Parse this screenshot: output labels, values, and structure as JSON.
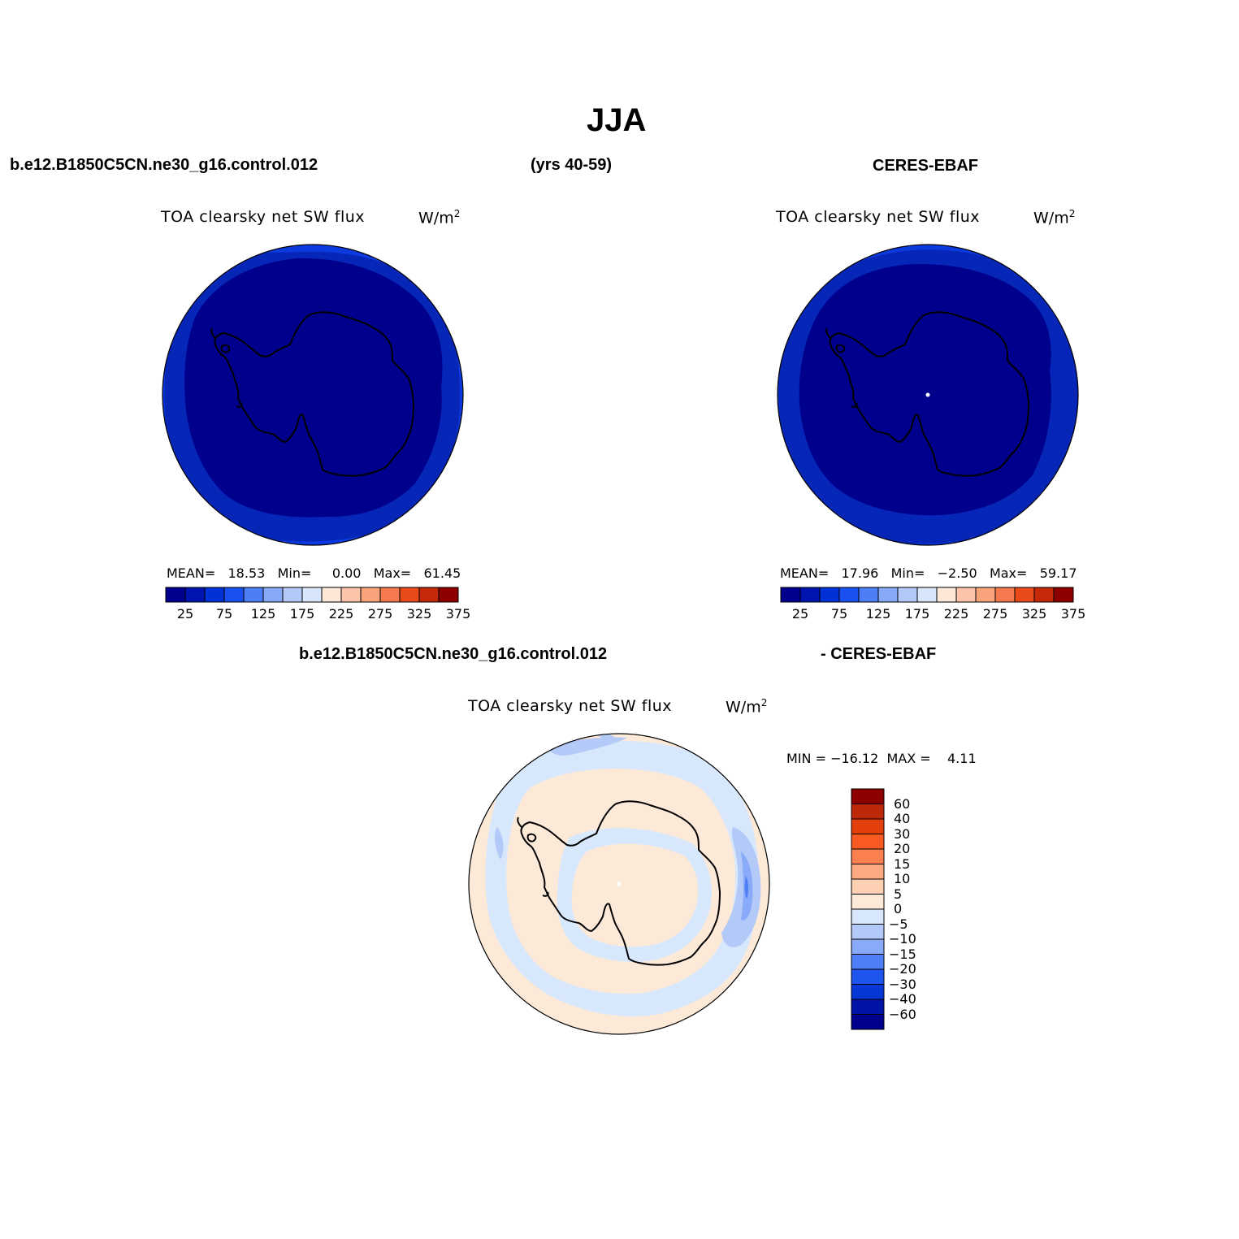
{
  "figure": {
    "title": "JJA",
    "case_label": "b.e12.B1850C5CN.ne30_g16.control.012",
    "years_label": "(yrs 40-59)",
    "obs_label": "CERES-EBAF",
    "diff_case_label": "b.e12.B1850C5CN.ne30_g16.control.012",
    "diff_obs_label": "- CERES-EBAF"
  },
  "panels": {
    "model": {
      "variable": "TOA clearsky net SW flux",
      "units_base": "W/m",
      "units_exp": "2",
      "mean_label": "MEAN=",
      "mean": "18.53",
      "min_label": "Min=",
      "min": "0.00",
      "max_label": "Max=",
      "max": "61.45"
    },
    "obs": {
      "variable": "TOA clearsky net SW flux",
      "units_base": "W/m",
      "units_exp": "2",
      "mean_label": "MEAN=",
      "mean": "17.96",
      "min_label": "Min=",
      "min": "−2.50",
      "max_label": "Max=",
      "max": "59.17"
    },
    "diff": {
      "variable": "TOA clearsky net SW flux",
      "units_base": "W/m",
      "units_exp": "2",
      "minmax_text": "MIN = −16.12  MAX =    4.11"
    }
  },
  "colorbar_main": {
    "colors": [
      "#00008c",
      "#0015b0",
      "#0031d6",
      "#1a4ff0",
      "#4d7ef7",
      "#86a9f8",
      "#b3caf8",
      "#d7e6fb",
      "#fde8d8",
      "#fcc4a8",
      "#f9a37c",
      "#f57a4d",
      "#e84a1a",
      "#c42a09",
      "#8c0000"
    ],
    "tick_labels": [
      "25",
      "75",
      "125",
      "175",
      "225",
      "275",
      "325",
      "375"
    ]
  },
  "colorbar_diff": {
    "colors_top_to_bottom": [
      "#8c0000",
      "#bc2808",
      "#e53f0b",
      "#f85a22",
      "#fb8050",
      "#fca97f",
      "#fdd0b4",
      "#fde9d8",
      "#d8e8fc",
      "#b3c9f8",
      "#88aaf8",
      "#4f80f5",
      "#1e55ef",
      "#0536d6",
      "#0014a6",
      "#00008c"
    ],
    "tick_labels": [
      "60",
      "40",
      "30",
      "20",
      "15",
      "10",
      "5",
      "0",
      "−5",
      "−10",
      "−15",
      "−20",
      "−30",
      "−40",
      "−60"
    ]
  },
  "map_colors": {
    "deep": "#00008c",
    "mid": "#0626b8",
    "outer": "#0b3bdf",
    "diff_bg": "#fde9d8",
    "diff_light": "#d8e8fc",
    "diff_mid": "#b3c9f8",
    "diff_deep": "#88aaf8",
    "diff_deepest": "#4f80f5"
  }
}
